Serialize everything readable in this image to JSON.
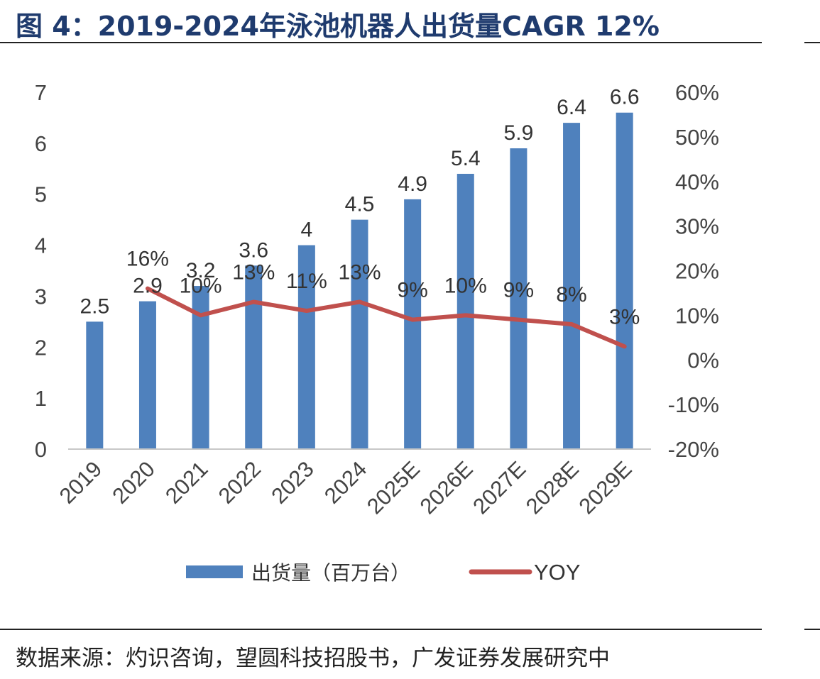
{
  "figure": {
    "title": "图 4：2019-2024年泳池机器人出货量CAGR 12%",
    "source": "数据来源：灼识咨询，望圆科技招股书，广发证券发展研究中"
  },
  "colors": {
    "bar": "#4f81bd",
    "line": "#c0504d",
    "title": "#1f3b6e"
  },
  "chart_data": {
    "type": "bar",
    "categories": [
      "2019",
      "2020",
      "2021",
      "2022",
      "2023",
      "2024",
      "2025E",
      "2026E",
      "2027E",
      "2028E",
      "2029E"
    ],
    "series": [
      {
        "name": "出货量（百万台）",
        "type": "bar",
        "axis": "left",
        "values": [
          2.5,
          2.9,
          3.2,
          3.6,
          4,
          4.5,
          4.9,
          5.4,
          5.9,
          6.4,
          6.6
        ],
        "labels": [
          "2.5",
          "2.9",
          "3.2",
          "3.6",
          "4",
          "4.5",
          "4.9",
          "5.4",
          "5.9",
          "6.4",
          "6.6"
        ]
      },
      {
        "name": "YOY",
        "type": "line",
        "axis": "right",
        "values": [
          null,
          16,
          10,
          13,
          11,
          13,
          9,
          10,
          9,
          8,
          3
        ],
        "labels": [
          "",
          "16%",
          "10%",
          "13%",
          "11%",
          "13%",
          "9%",
          "10%",
          "9%",
          "8%",
          "3%"
        ]
      }
    ],
    "y_left": {
      "ylim": [
        0,
        7
      ],
      "ticks": [
        "0",
        "1",
        "2",
        "3",
        "4",
        "5",
        "6",
        "7"
      ]
    },
    "y_right": {
      "ylim": [
        -20,
        60
      ],
      "ticks": [
        "-20%",
        "-10%",
        "0%",
        "10%",
        "20%",
        "30%",
        "40%",
        "50%",
        "60%"
      ]
    },
    "grid": false,
    "legend": "bottom"
  }
}
